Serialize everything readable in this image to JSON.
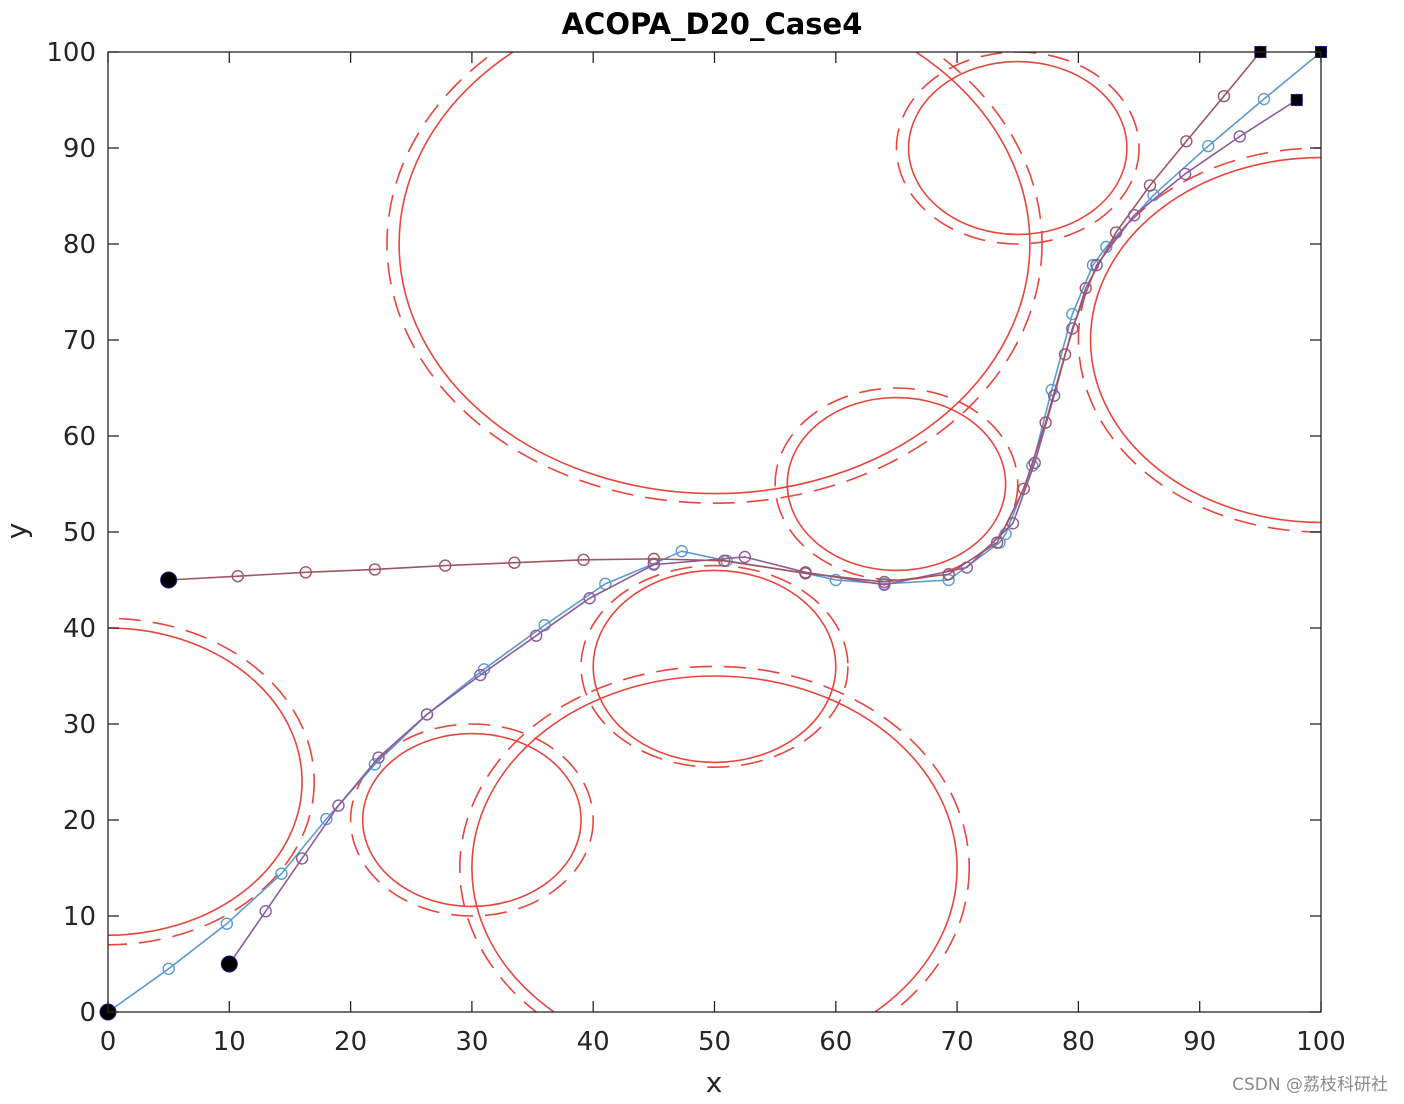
{
  "chart_data": {
    "type": "line",
    "title": "ACOPA_D20_Case4",
    "xlabel": "x",
    "ylabel": "y",
    "xlim": [
      0,
      100
    ],
    "ylim": [
      0,
      100
    ],
    "xticks": [
      "0",
      "10",
      "20",
      "30",
      "40",
      "50",
      "60",
      "70",
      "80",
      "90",
      "100"
    ],
    "yticks": [
      "0",
      "10",
      "20",
      "30",
      "40",
      "50",
      "60",
      "70",
      "80",
      "90",
      "100"
    ],
    "grid": false,
    "obstacles": [
      {
        "cx": 0,
        "cy": 24,
        "rx": 16,
        "ry": 16,
        "srx": 17,
        "sry": 17
      },
      {
        "cx": 30,
        "cy": 20,
        "rx": 9,
        "ry": 9,
        "srx": 10,
        "sry": 10
      },
      {
        "cx": 50,
        "cy": 15,
        "rx": 20,
        "ry": 20,
        "srx": 21,
        "sry": 21
      },
      {
        "cx": 50,
        "cy": 36,
        "rx": 10,
        "ry": 10,
        "srx": 11,
        "sry": 10.5
      },
      {
        "cx": 50,
        "cy": 80,
        "rx": 26,
        "ry": 26,
        "srx": 27,
        "sry": 27
      },
      {
        "cx": 65,
        "cy": 55,
        "rx": 9,
        "ry": 9,
        "srx": 10,
        "sry": 10
      },
      {
        "cx": 75,
        "cy": 90,
        "rx": 9,
        "ry": 9,
        "srx": 10,
        "sry": 10
      },
      {
        "cx": 100,
        "cy": 70,
        "rx": 19,
        "ry": 19,
        "srx": 20,
        "sry": 20
      }
    ],
    "obstacle_color": "#e8453c",
    "series": [
      {
        "color": "#5b9bd5",
        "start": [
          0,
          0
        ],
        "end": [
          100,
          100
        ],
        "x": [
          0,
          5,
          9.8,
          14.3,
          18,
          22,
          26.3,
          31,
          36,
          41,
          45,
          47.3,
          51,
          57.5,
          60,
          64,
          69.3,
          73.5,
          74,
          76.2,
          77.8,
          79.5,
          81.2,
          82.3,
          86.2,
          90.7,
          95.3,
          100
        ],
        "y": [
          0,
          4.5,
          9.2,
          14.4,
          20.1,
          25.8,
          31,
          35.7,
          40.3,
          44.6,
          46.7,
          48,
          47,
          45.7,
          45,
          44.6,
          45,
          48.9,
          49.8,
          56.9,
          64.8,
          72.7,
          77.8,
          79.7,
          85.1,
          90.2,
          95.1,
          100
        ]
      },
      {
        "color": "#8e5a9e",
        "start": [
          10,
          5
        ],
        "end": [
          98,
          95
        ],
        "x": [
          10,
          13,
          16,
          19,
          22.3,
          26.3,
          30.7,
          35.3,
          39.7,
          45,
          52.5,
          57.5,
          64,
          70.8,
          74.6,
          76.4,
          78,
          79.5,
          81.5,
          84.6,
          88.8,
          93.3,
          98
        ],
        "y": [
          5,
          10.5,
          16,
          21.5,
          26.5,
          31,
          35.1,
          39.2,
          43.1,
          46.6,
          47.4,
          45.8,
          44.5,
          46.3,
          50.9,
          57.2,
          64.2,
          71.2,
          77.8,
          83,
          87.3,
          91.2,
          95
        ]
      },
      {
        "color": "#a05565",
        "start": [
          5,
          45
        ],
        "end": [
          95,
          100
        ],
        "x": [
          5,
          10.7,
          16.3,
          22,
          27.8,
          33.5,
          39.2,
          45,
          50.8,
          57.5,
          64,
          69.3,
          73.3,
          75.5,
          77.3,
          78.9,
          80.6,
          83.1,
          85.9,
          88.9,
          92,
          95
        ],
        "y": [
          45,
          45.4,
          45.8,
          46.1,
          46.5,
          46.8,
          47.1,
          47.2,
          47,
          45.7,
          44.8,
          45.6,
          48.9,
          54.5,
          61.4,
          68.5,
          75.4,
          81.2,
          86.1,
          90.7,
          95.4,
          100
        ]
      }
    ]
  },
  "watermark": "CSDN @荔枝科研社"
}
